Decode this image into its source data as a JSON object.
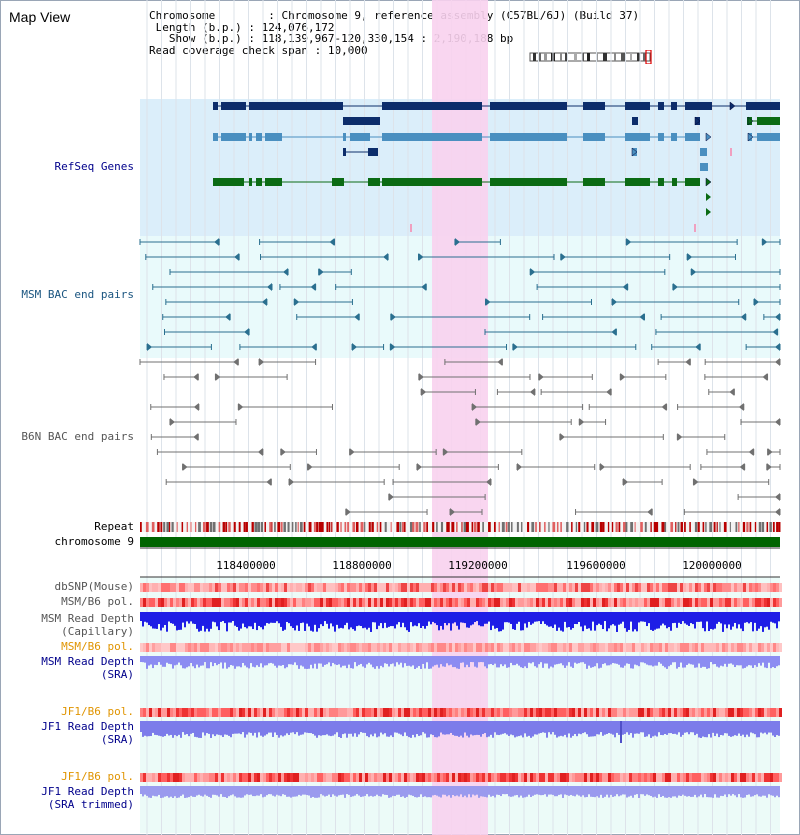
{
  "page_title": "Map View",
  "info": {
    "chromosome_key": "Chromosome",
    "chromosome_val": "Chromosome 9, reference assembly (C57BL/6J) (Build 37)",
    "length_key": "Length (b.p.)",
    "length_val": "124,076,172",
    "show_key": "Show (b.p.)",
    "show_val": "118,139,967-120,330,154 : 2,190,188 bp",
    "coverage_key": "Read coverage check span",
    "coverage_val": "10,000"
  },
  "tracks": {
    "refseq": "RefSeq Genes",
    "msm_bac": "MSM BAC end pairs",
    "b6n_bac": "B6N BAC end pairs",
    "repeat": "Repeat",
    "chromosome": "chromosome 9",
    "dbsnp": "dbSNP(Mouse)",
    "msm_pol_1": "MSM/B6 pol.",
    "msm_depth_cap_1": "MSM Read Depth",
    "msm_depth_cap_2": "(Capillary)",
    "msm_pol_2": "MSM/B6 pol.",
    "msm_depth_sra_1": "MSM Read Depth",
    "msm_depth_sra_2": "(SRA)",
    "jf1_pol_1": "JF1/B6 pol.",
    "jf1_depth_sra_1": "JF1 Read Depth",
    "jf1_depth_sra_2": "(SRA)",
    "jf1_pol_2": "JF1/B6 pol.",
    "jf1_depth_trim_1": "JF1 Read Depth",
    "jf1_depth_trim_2": "(SRA trimmed)"
  },
  "axis": {
    "ticks": [
      "118400000",
      "118800000",
      "119200000",
      "119600000",
      "120000000"
    ]
  },
  "colors": {
    "refseq_bg": "#dbeefa",
    "bac_bg": "#e9fafb",
    "lower_bg": "#ecfbf8",
    "highlight": "#f8d2ee",
    "gene_dark": "#0d2d6b",
    "gene_mid": "#4a8fc0",
    "gene_green": "#0b6b14",
    "msm_pair": "#2a6f8f",
    "b6n_pair": "#707070",
    "label_navy": "#00008b",
    "label_msm": "#1a5580",
    "label_gray": "#555555",
    "label_orange": "#e09400",
    "depth_blue": "#1e1ee6",
    "depth_light": "#8c8cf2",
    "chrom_green": "#006400"
  }
}
